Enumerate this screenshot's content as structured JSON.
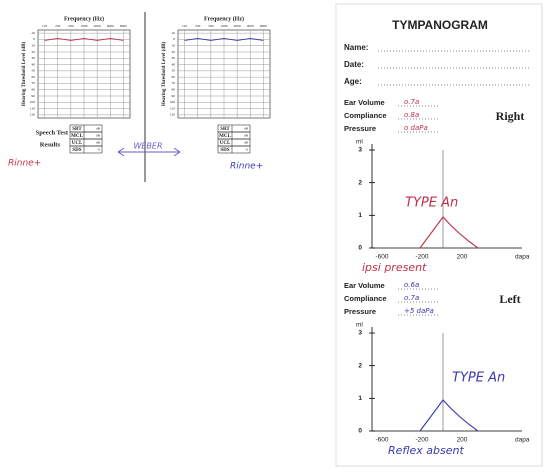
{
  "audiograms": [
    {
      "freq_title": "Frequency (Hz)",
      "y_title": "Hearing Threshold Level (dB)",
      "frequencies": [
        "125",
        "250",
        "500",
        "1000",
        "2000",
        "4000",
        "8000"
      ],
      "levels": [
        "-10",
        "0",
        "10",
        "20",
        "30",
        "40",
        "50",
        "60",
        "70",
        "80",
        "90",
        "100",
        "110",
        "120"
      ],
      "speech": {
        "title": "Speech Test",
        "subtitle": "Results",
        "rows": [
          [
            "SRT",
            "dB"
          ],
          [
            "MCL",
            "dB"
          ],
          [
            "UCL",
            "dB"
          ],
          [
            "SDS",
            "%"
          ]
        ]
      },
      "note": "Rinne+"
    },
    {
      "freq_title": "Frequency (Hz)",
      "y_title": "Hearing Threshold Level (dB)",
      "frequencies": [
        "125",
        "250",
        "500",
        "1000",
        "2000",
        "4000",
        "8000"
      ],
      "levels": [
        "-10",
        "0",
        "10",
        "20",
        "30",
        "40",
        "50",
        "60",
        "70",
        "80",
        "90",
        "100",
        "110",
        "120"
      ],
      "speech": {
        "rows": [
          [
            "SRT",
            "dB"
          ],
          [
            "MCL",
            "dB"
          ],
          [
            "UCL",
            "dB"
          ],
          [
            "SDS",
            "%"
          ]
        ]
      },
      "note": "Rinne+"
    }
  ],
  "weber": "WEBER",
  "tympanogram": {
    "title": "TYMPANOGRAM",
    "fields": [
      "Name:",
      "Date:",
      "Age:"
    ],
    "ears": [
      {
        "side": "Right",
        "measures": [
          {
            "label": "Ear Volume",
            "value": "o.7a"
          },
          {
            "label": "Compliance",
            "value": "o.8a"
          },
          {
            "label": "Pressure",
            "value": "o daPa"
          }
        ],
        "y_unit": "ml",
        "yticks": [
          "0",
          "1",
          "2",
          "3"
        ],
        "xticks": [
          "-600",
          "-200",
          "200"
        ],
        "x_unit": "dapa",
        "notes": [
          "TYPE An",
          "ipsi present"
        ]
      },
      {
        "side": "Left",
        "measures": [
          {
            "label": "Ear Volume",
            "value": "o.6a"
          },
          {
            "label": "Compliance",
            "value": "o.7a"
          },
          {
            "label": "Pressure",
            "value": "+5 daPa"
          }
        ],
        "y_unit": "ml",
        "yticks": [
          "0",
          "1",
          "2",
          "3"
        ],
        "xticks": [
          "-600",
          "-200",
          "200"
        ],
        "x_unit": "dapa",
        "notes": [
          "TYPE An",
          "Reflex absent"
        ]
      }
    ]
  }
}
